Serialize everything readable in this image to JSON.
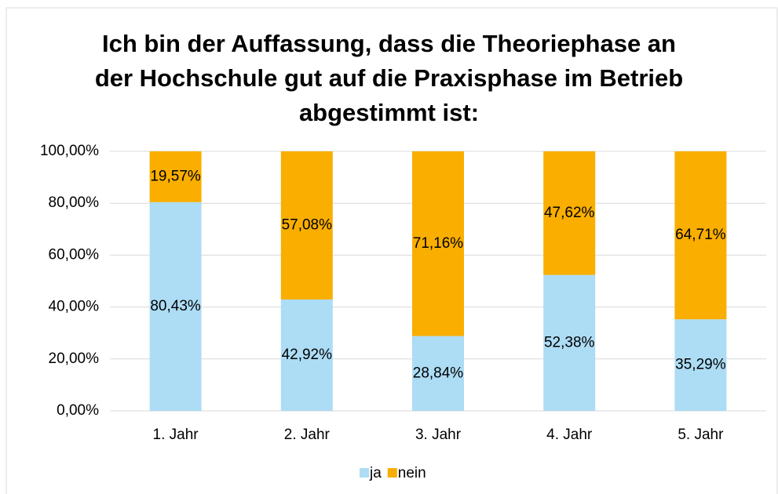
{
  "chart_data": {
    "type": "stacked_bar",
    "title": "Ich bin der Auffassung, dass die Theoriephase an der Hochschule gut auf die Praxisphase im Betrieb abgestimmt ist:",
    "categories": [
      "1. Jahr",
      "2. Jahr",
      "3. Jahr",
      "4. Jahr",
      "5. Jahr"
    ],
    "series": [
      {
        "name": "ja",
        "color": "#addcf5",
        "values": [
          80.43,
          42.92,
          28.84,
          52.38,
          35.29
        ],
        "value_labels": [
          "80,43%",
          "42,92%",
          "28,84%",
          "52,38%",
          "35,29%"
        ]
      },
      {
        "name": "nein",
        "color": "#f9ae00",
        "values": [
          19.57,
          57.08,
          71.16,
          47.62,
          64.71
        ],
        "value_labels": [
          "19,57%",
          "57,08%",
          "71,16%",
          "47,62%",
          "64,71%"
        ]
      }
    ],
    "ylim": [
      0,
      100
    ],
    "yticks": [
      {
        "value": 0,
        "label": "0,00%"
      },
      {
        "value": 20,
        "label": "20,00%"
      },
      {
        "value": 40,
        "label": "40,00%"
      },
      {
        "value": 60,
        "label": "60,00%"
      },
      {
        "value": 80,
        "label": "80,00%"
      },
      {
        "value": 100,
        "label": "100,00%"
      }
    ],
    "grid": true,
    "legend": "bottom"
  }
}
